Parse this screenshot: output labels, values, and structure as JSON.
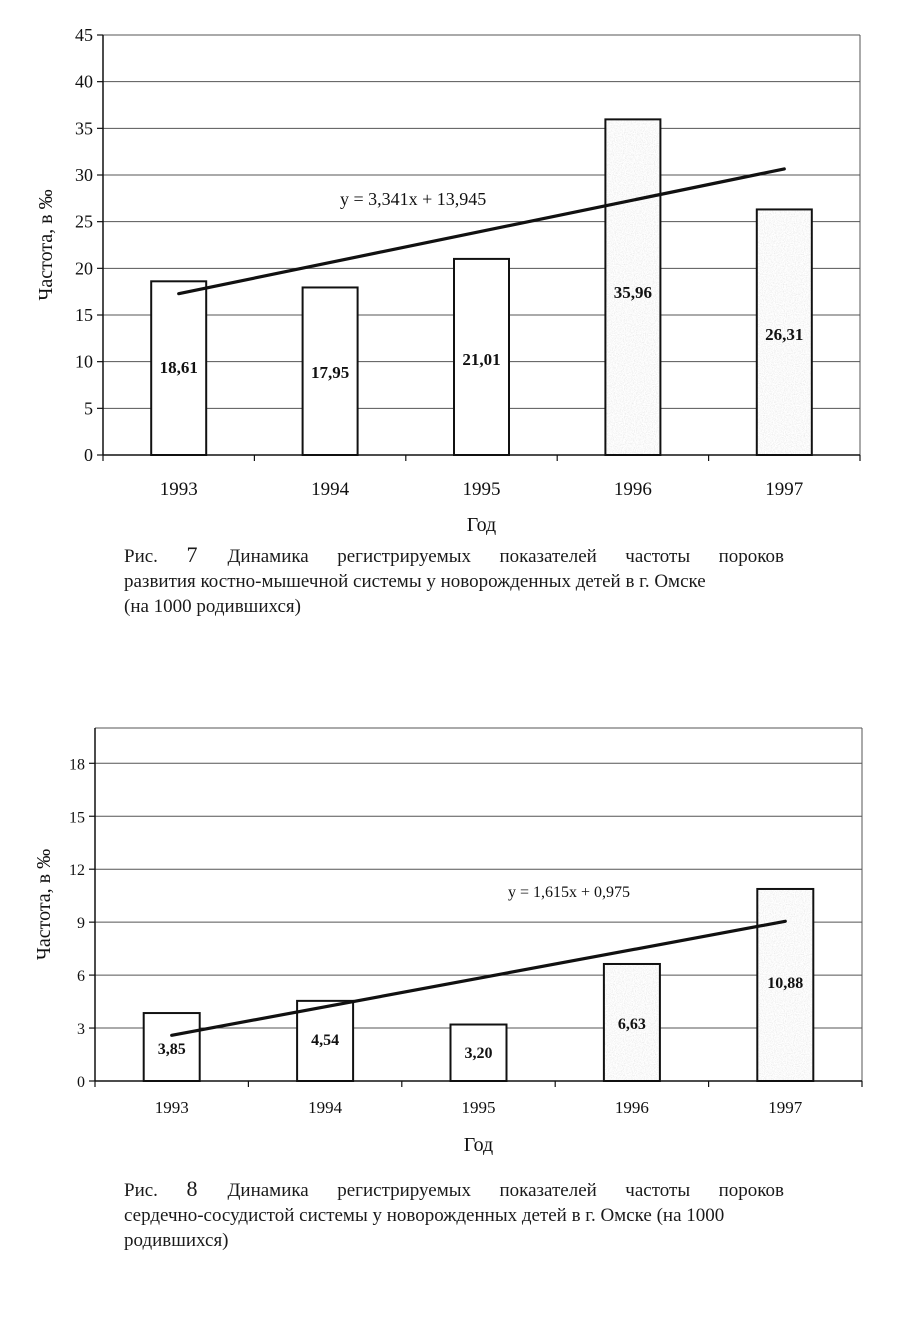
{
  "chart_data": [
    {
      "type": "bar",
      "categories": [
        "1993",
        "1994",
        "1995",
        "1996",
        "1997"
      ],
      "values": [
        18.61,
        17.95,
        21.01,
        35.96,
        26.31
      ],
      "value_labels": [
        "18,61",
        "17,95",
        "21,01",
        "35,96",
        "26,31"
      ],
      "ylabel": "Частота, в ‰",
      "xlabel": "Год",
      "ylim": [
        0,
        45
      ],
      "yticks": [
        0,
        5,
        10,
        15,
        20,
        25,
        30,
        35,
        40,
        45
      ],
      "grid": true,
      "trendline": {
        "equation": "y = 3,341x + 13,945",
        "slope": 3.341,
        "intercept": 13.945
      },
      "shaded_bars": [
        "1996",
        "1997"
      ]
    },
    {
      "type": "bar",
      "categories": [
        "1993",
        "1994",
        "1995",
        "1996",
        "1997"
      ],
      "values": [
        3.85,
        4.54,
        3.2,
        6.63,
        10.88
      ],
      "value_labels": [
        "3,85",
        "4,54",
        "3,20",
        "6,63",
        "10,88"
      ],
      "ylabel": "Частота, в ‰",
      "xlabel": "Год",
      "ylim": [
        0,
        20
      ],
      "yticks": [
        0,
        3,
        6,
        9,
        12,
        15,
        18
      ],
      "grid": true,
      "trendline": {
        "equation": "y = 1,615x + 0,975",
        "slope": 1.615,
        "intercept": 0.975
      },
      "shaded_bars": [
        "1996",
        "1997"
      ]
    }
  ],
  "captions": [
    {
      "prefix": "Рис.",
      "number": "7",
      "line1": "Динамика регистрируемых показателей частоты пороков",
      "line2": "развития костно-мышечной системы у новорожденных детей в г. Омске",
      "line3": "(на 1000 родившихся)"
    },
    {
      "prefix": "Рис.",
      "number": "8",
      "line1": "Динамика регистрируемых показателей частоты пороков",
      "line2": "сердечно-сосудистой системы у новорожденных детей в г. Омске (на 1000",
      "line3": "родившихся)"
    }
  ],
  "colors": {
    "ink": "#111111",
    "grid": "#555555",
    "bar_fill": "#ffffff",
    "bar_shade": "#d9d9d9"
  }
}
